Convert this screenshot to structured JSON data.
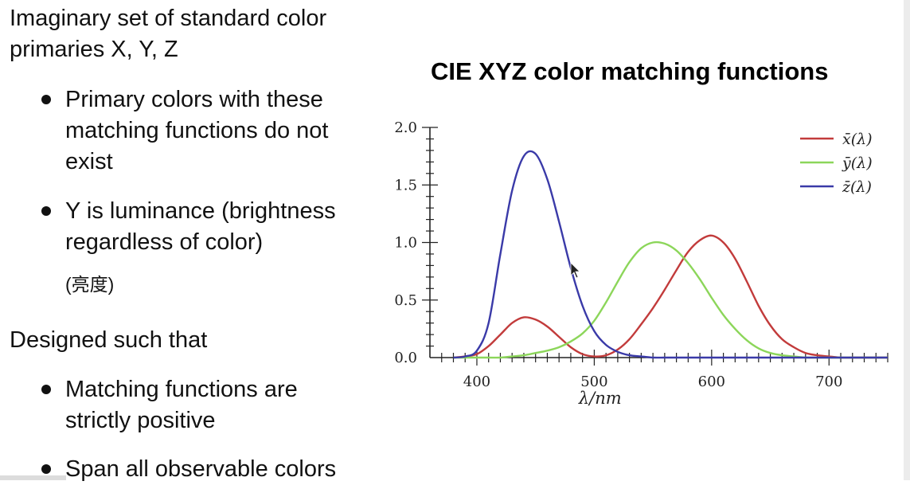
{
  "slide": {
    "text_blocks": [
      {
        "id": "intro",
        "lines": [
          "Imaginary set of standard color",
          "primaries X, Y, Z"
        ]
      },
      {
        "id": "b1",
        "bullet": true,
        "lines": [
          "Primary colors with these",
          "matching functions do not",
          "exist"
        ]
      },
      {
        "id": "b2",
        "bullet": true,
        "lines": [
          "Y is luminance (brightness",
          "regardless of color)"
        ]
      },
      {
        "id": "b2note",
        "lines": [
          "(亮度)"
        ]
      },
      {
        "id": "designed",
        "lines": [
          "Designed such that"
        ]
      },
      {
        "id": "b3",
        "bullet": true,
        "lines": [
          "Matching functions are",
          "strictly positive"
        ]
      },
      {
        "id": "b4",
        "bullet": true,
        "lines": [
          "Span all observable colors"
        ]
      }
    ]
  },
  "chart_data": {
    "type": "line",
    "title": "CIE XYZ color matching functions",
    "xlabel": "λ/nm",
    "ylabel": "",
    "xlim": [
      360,
      750
    ],
    "ylim": [
      0,
      2.0
    ],
    "x_ticks": [
      400,
      500,
      600,
      700
    ],
    "y_ticks": [
      0.0,
      0.5,
      1.0,
      1.5,
      2.0
    ],
    "y_tick_labels": [
      "0.0",
      "0.5",
      "1.0",
      "1.5",
      "2.0"
    ],
    "grid": false,
    "legend_position": "top-right",
    "x": [
      380,
      390,
      400,
      410,
      420,
      430,
      440,
      450,
      460,
      470,
      480,
      490,
      500,
      510,
      520,
      530,
      540,
      550,
      560,
      570,
      580,
      590,
      600,
      610,
      620,
      630,
      640,
      650,
      660,
      670,
      680,
      690,
      700,
      710,
      720,
      730,
      740,
      750
    ],
    "series": [
      {
        "name": "x̄(λ)",
        "color": "#c23b3b",
        "values": [
          0.0,
          0.01,
          0.03,
          0.1,
          0.2,
          0.3,
          0.35,
          0.33,
          0.27,
          0.18,
          0.09,
          0.03,
          0.01,
          0.02,
          0.07,
          0.16,
          0.29,
          0.43,
          0.59,
          0.76,
          0.92,
          1.02,
          1.06,
          1.0,
          0.86,
          0.66,
          0.45,
          0.28,
          0.16,
          0.09,
          0.04,
          0.02,
          0.01,
          0.0,
          0.0,
          0.0,
          0.0,
          0.0
        ]
      },
      {
        "name": "ȳ(λ)",
        "color": "#8cd65a",
        "values": [
          0.0,
          0.0,
          0.0,
          0.0,
          0.0,
          0.01,
          0.02,
          0.04,
          0.06,
          0.09,
          0.14,
          0.21,
          0.32,
          0.48,
          0.66,
          0.83,
          0.95,
          1.0,
          0.99,
          0.93,
          0.82,
          0.68,
          0.52,
          0.37,
          0.25,
          0.15,
          0.08,
          0.04,
          0.02,
          0.01,
          0.0,
          0.0,
          0.0,
          0.0,
          0.0,
          0.0,
          0.0,
          0.0
        ]
      },
      {
        "name": "z̄(λ)",
        "color": "#3a3aa8",
        "values": [
          0.0,
          0.01,
          0.06,
          0.3,
          0.9,
          1.45,
          1.75,
          1.77,
          1.55,
          1.18,
          0.78,
          0.45,
          0.23,
          0.11,
          0.05,
          0.02,
          0.01,
          0.0,
          0.0,
          0.0,
          0.0,
          0.0,
          0.0,
          0.0,
          0.0,
          0.0,
          0.0,
          0.0,
          0.0,
          0.0,
          0.0,
          0.0,
          0.0,
          0.0,
          0.0,
          0.0,
          0.0,
          0.0
        ]
      }
    ]
  }
}
